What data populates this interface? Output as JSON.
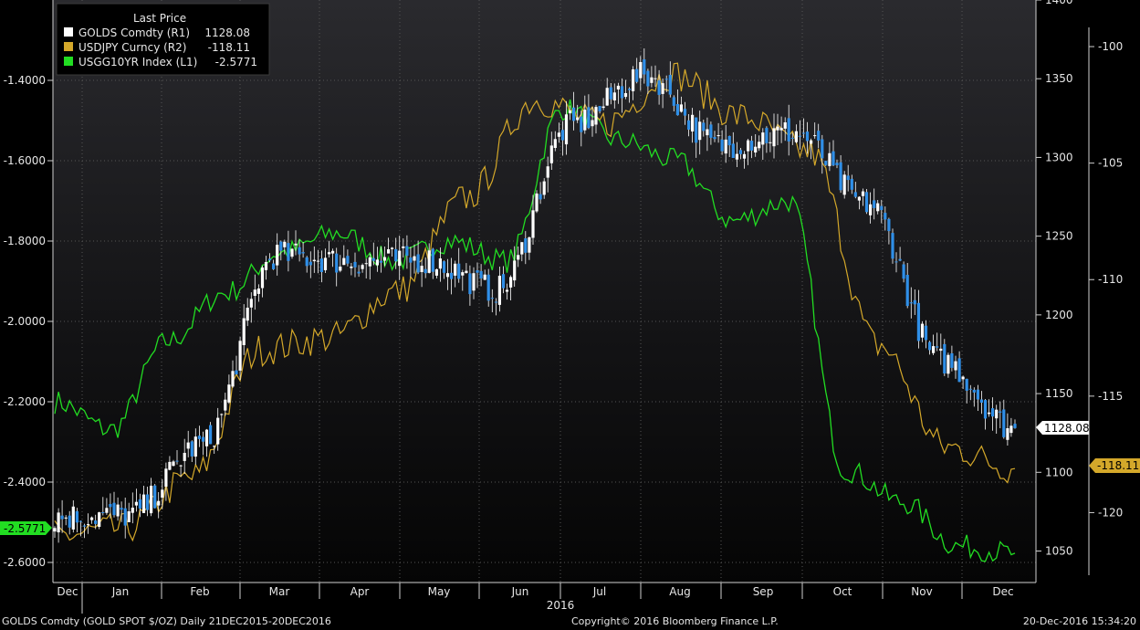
{
  "footer": {
    "left": "GOLDS Comdty (GOLD SPOT $/OZ)  Daily 21DEC2015-20DEC2016",
    "center": "Copyright© 2016 Bloomberg Finance L.P.",
    "right": "20-Dec-2016 15:34:20"
  },
  "chart_data": {
    "type": "line",
    "title": "",
    "legend": {
      "title": "Last Price",
      "placement": "top-left",
      "entries": [
        {
          "label": "GOLDS Comdty  (R1)",
          "value": "1128.08",
          "color": "#ffffff"
        },
        {
          "label": "USDJPY Curncy  (R2)",
          "value": "-118.11",
          "color": "#d4a82a"
        },
        {
          "label": "USGG10YR Index  (L1)",
          "value": "-2.5771",
          "color": "#22dd22"
        }
      ]
    },
    "x_months": [
      "Dec",
      "Jan",
      "Feb",
      "Mar",
      "Apr",
      "May",
      "Jun",
      "Jul",
      "Aug",
      "Sep",
      "Oct",
      "Nov",
      "Dec"
    ],
    "x_year_label": "2016",
    "axes": {
      "L1": {
        "range": [
          -2.65,
          -1.2
        ],
        "ticks": [
          "-1.4000",
          "-1.6000",
          "-1.8000",
          "-2.0000",
          "-2.2000",
          "-2.4000",
          "-2.6000"
        ]
      },
      "R1": {
        "range": [
          1030,
          1400
        ],
        "ticks": [
          "1400",
          "1350",
          "1300",
          "1250",
          "1200",
          "1150",
          "1100",
          "1050"
        ]
      },
      "R2": {
        "range": [
          -123,
          -98
        ],
        "ticks": [
          "-100",
          "-105",
          "-110",
          "-115",
          "-120"
        ]
      }
    },
    "last_value_labels": {
      "L1": "-2.5771",
      "R1": "1128.08",
      "R2": "-118.11"
    },
    "grid": true,
    "series": [
      {
        "name": "GOLDS Comdty",
        "axis": "R1",
        "style": "candlestick",
        "monthly_close": [
          1072,
          1073,
          1118,
          1238,
          1234,
          1235,
          1216,
          1321,
          1352,
          1308,
          1316,
          1271,
          1171,
          1128
        ],
        "last": 1128.08
      },
      {
        "name": "USDJPY Curncy",
        "axis": "R2",
        "monthly": [
          -121.0,
          -120.7,
          -118.5,
          -113.0,
          -112.5,
          -110.5,
          -106.5,
          -102.3,
          -103.3,
          -101.2,
          -103.0,
          -104.5,
          -112.8,
          -117.2,
          -118.11
        ]
      },
      {
        "name": "USGG10YR Index",
        "axis": "L1",
        "monthly": [
          -2.2,
          -2.27,
          -2.05,
          -1.93,
          -1.83,
          -1.78,
          -1.85,
          -1.8,
          -1.85,
          -1.47,
          -1.55,
          -1.6,
          -1.75,
          -1.7,
          -2.37,
          -2.45,
          -2.56,
          -2.5771
        ]
      }
    ]
  }
}
